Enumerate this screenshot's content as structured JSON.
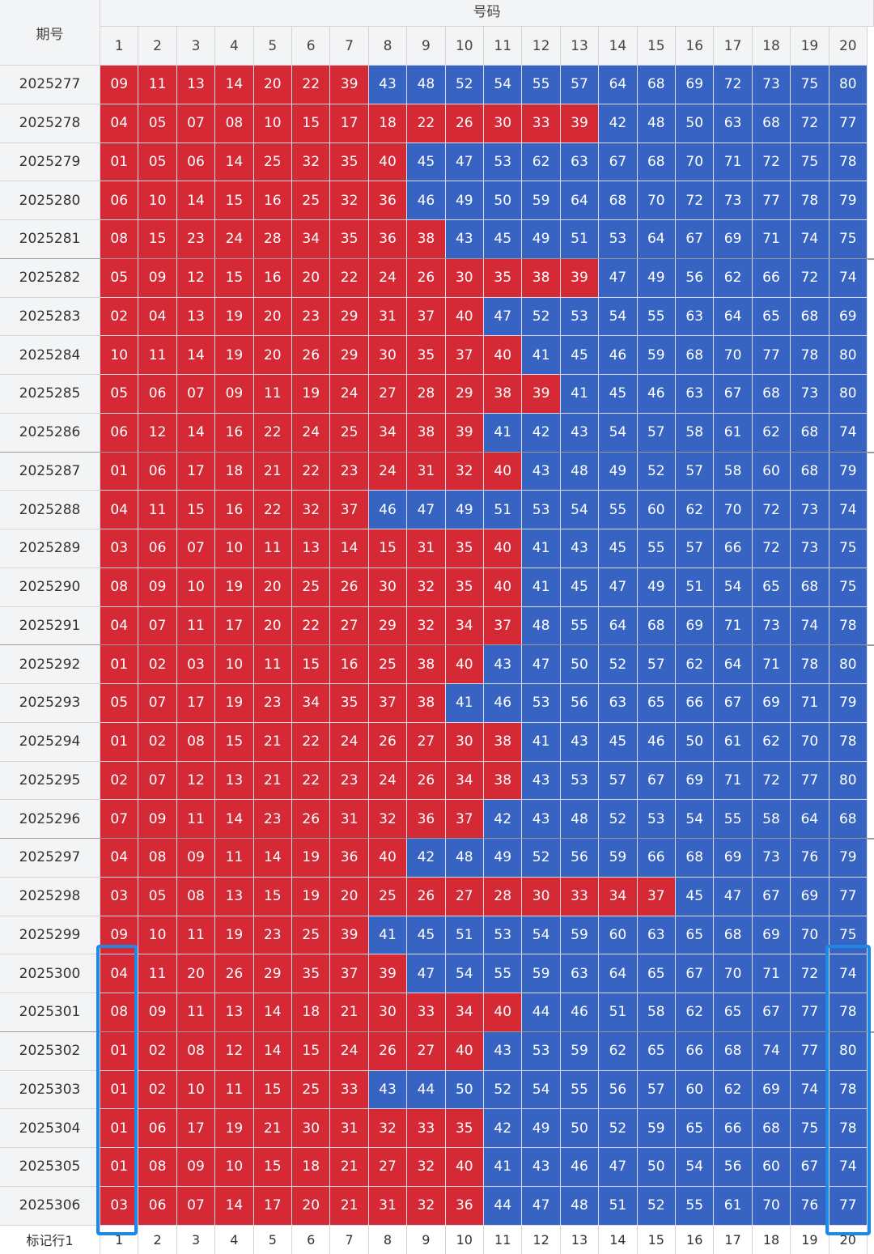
{
  "header": {
    "issue_label": "期号",
    "numbers_label": "号码",
    "columns": [
      "1",
      "2",
      "3",
      "4",
      "5",
      "6",
      "7",
      "8",
      "9",
      "10",
      "11",
      "12",
      "13",
      "14",
      "15",
      "16",
      "17",
      "18",
      "19",
      "20"
    ]
  },
  "footer": {
    "label": "标记行1",
    "columns": [
      "1",
      "2",
      "3",
      "4",
      "5",
      "6",
      "7",
      "8",
      "9",
      "10",
      "11",
      "12",
      "13",
      "14",
      "15",
      "16",
      "17",
      "18",
      "19",
      "20"
    ]
  },
  "colors": {
    "red": "#d52a36",
    "blue": "#3764c2",
    "highlight": "#1e88e5"
  },
  "highlighted_columns": [
    "1",
    "20"
  ],
  "highlighted_issues_from": "2025300",
  "rows": [
    {
      "issue": "2025277",
      "nums": [
        "09",
        "11",
        "13",
        "14",
        "20",
        "22",
        "39",
        "43",
        "48",
        "52",
        "54",
        "55",
        "57",
        "64",
        "68",
        "69",
        "72",
        "73",
        "75",
        "80"
      ]
    },
    {
      "issue": "2025278",
      "nums": [
        "04",
        "05",
        "07",
        "08",
        "10",
        "15",
        "17",
        "18",
        "22",
        "26",
        "30",
        "33",
        "39",
        "42",
        "48",
        "50",
        "63",
        "68",
        "72",
        "77"
      ]
    },
    {
      "issue": "2025279",
      "nums": [
        "01",
        "05",
        "06",
        "14",
        "25",
        "32",
        "35",
        "40",
        "45",
        "47",
        "53",
        "62",
        "63",
        "67",
        "68",
        "70",
        "71",
        "72",
        "75",
        "78"
      ]
    },
    {
      "issue": "2025280",
      "nums": [
        "06",
        "10",
        "14",
        "15",
        "16",
        "25",
        "32",
        "36",
        "46",
        "49",
        "50",
        "59",
        "64",
        "68",
        "70",
        "72",
        "73",
        "77",
        "78",
        "79"
      ]
    },
    {
      "issue": "2025281",
      "nums": [
        "08",
        "15",
        "23",
        "24",
        "28",
        "34",
        "35",
        "36",
        "38",
        "43",
        "45",
        "49",
        "51",
        "53",
        "64",
        "67",
        "69",
        "71",
        "74",
        "75"
      ]
    },
    {
      "issue": "2025282",
      "nums": [
        "05",
        "09",
        "12",
        "15",
        "16",
        "20",
        "22",
        "24",
        "26",
        "30",
        "35",
        "38",
        "39",
        "47",
        "49",
        "56",
        "62",
        "66",
        "72",
        "74"
      ]
    },
    {
      "issue": "2025283",
      "nums": [
        "02",
        "04",
        "13",
        "19",
        "20",
        "23",
        "29",
        "31",
        "37",
        "40",
        "47",
        "52",
        "53",
        "54",
        "55",
        "63",
        "64",
        "65",
        "68",
        "69"
      ]
    },
    {
      "issue": "2025284",
      "nums": [
        "10",
        "11",
        "14",
        "19",
        "20",
        "26",
        "29",
        "30",
        "35",
        "37",
        "40",
        "41",
        "45",
        "46",
        "59",
        "68",
        "70",
        "77",
        "78",
        "80"
      ]
    },
    {
      "issue": "2025285",
      "nums": [
        "05",
        "06",
        "07",
        "09",
        "11",
        "19",
        "24",
        "27",
        "28",
        "29",
        "38",
        "39",
        "41",
        "45",
        "46",
        "63",
        "67",
        "68",
        "73",
        "80"
      ]
    },
    {
      "issue": "2025286",
      "nums": [
        "06",
        "12",
        "14",
        "16",
        "22",
        "24",
        "25",
        "34",
        "38",
        "39",
        "41",
        "42",
        "43",
        "54",
        "57",
        "58",
        "61",
        "62",
        "68",
        "74"
      ]
    },
    {
      "issue": "2025287",
      "nums": [
        "01",
        "06",
        "17",
        "18",
        "21",
        "22",
        "23",
        "24",
        "31",
        "32",
        "40",
        "43",
        "48",
        "49",
        "52",
        "57",
        "58",
        "60",
        "68",
        "79"
      ]
    },
    {
      "issue": "2025288",
      "nums": [
        "04",
        "11",
        "15",
        "16",
        "22",
        "32",
        "37",
        "46",
        "47",
        "49",
        "51",
        "53",
        "54",
        "55",
        "60",
        "62",
        "70",
        "72",
        "73",
        "74"
      ]
    },
    {
      "issue": "2025289",
      "nums": [
        "03",
        "06",
        "07",
        "10",
        "11",
        "13",
        "14",
        "15",
        "31",
        "35",
        "40",
        "41",
        "43",
        "45",
        "55",
        "57",
        "66",
        "72",
        "73",
        "75"
      ]
    },
    {
      "issue": "2025290",
      "nums": [
        "08",
        "09",
        "10",
        "19",
        "20",
        "25",
        "26",
        "30",
        "32",
        "35",
        "40",
        "41",
        "45",
        "47",
        "49",
        "51",
        "54",
        "65",
        "68",
        "75"
      ]
    },
    {
      "issue": "2025291",
      "nums": [
        "04",
        "07",
        "11",
        "17",
        "20",
        "22",
        "27",
        "29",
        "32",
        "34",
        "37",
        "48",
        "55",
        "64",
        "68",
        "69",
        "71",
        "73",
        "74",
        "78"
      ]
    },
    {
      "issue": "2025292",
      "nums": [
        "01",
        "02",
        "03",
        "10",
        "11",
        "15",
        "16",
        "25",
        "38",
        "40",
        "43",
        "47",
        "50",
        "52",
        "57",
        "62",
        "64",
        "71",
        "78",
        "80"
      ]
    },
    {
      "issue": "2025293",
      "nums": [
        "05",
        "07",
        "17",
        "19",
        "23",
        "34",
        "35",
        "37",
        "38",
        "41",
        "46",
        "53",
        "56",
        "63",
        "65",
        "66",
        "67",
        "69",
        "71",
        "79"
      ]
    },
    {
      "issue": "2025294",
      "nums": [
        "01",
        "02",
        "08",
        "15",
        "21",
        "22",
        "24",
        "26",
        "27",
        "30",
        "38",
        "41",
        "43",
        "45",
        "46",
        "50",
        "61",
        "62",
        "70",
        "78"
      ]
    },
    {
      "issue": "2025295",
      "nums": [
        "02",
        "07",
        "12",
        "13",
        "21",
        "22",
        "23",
        "24",
        "26",
        "34",
        "38",
        "43",
        "53",
        "57",
        "67",
        "69",
        "71",
        "72",
        "77",
        "80"
      ]
    },
    {
      "issue": "2025296",
      "nums": [
        "07",
        "09",
        "11",
        "14",
        "23",
        "26",
        "31",
        "32",
        "36",
        "37",
        "42",
        "43",
        "48",
        "52",
        "53",
        "54",
        "55",
        "58",
        "64",
        "68"
      ]
    },
    {
      "issue": "2025297",
      "nums": [
        "04",
        "08",
        "09",
        "11",
        "14",
        "19",
        "36",
        "40",
        "42",
        "48",
        "49",
        "52",
        "56",
        "59",
        "66",
        "68",
        "69",
        "73",
        "76",
        "79"
      ]
    },
    {
      "issue": "2025298",
      "nums": [
        "03",
        "05",
        "08",
        "13",
        "15",
        "19",
        "20",
        "25",
        "26",
        "27",
        "28",
        "30",
        "33",
        "34",
        "37",
        "45",
        "47",
        "67",
        "69",
        "77"
      ]
    },
    {
      "issue": "2025299",
      "nums": [
        "09",
        "10",
        "11",
        "19",
        "23",
        "25",
        "39",
        "41",
        "45",
        "51",
        "53",
        "54",
        "59",
        "60",
        "63",
        "65",
        "68",
        "69",
        "70",
        "75"
      ]
    },
    {
      "issue": "2025300",
      "nums": [
        "04",
        "11",
        "20",
        "26",
        "29",
        "35",
        "37",
        "39",
        "47",
        "54",
        "55",
        "59",
        "63",
        "64",
        "65",
        "67",
        "70",
        "71",
        "72",
        "74"
      ]
    },
    {
      "issue": "2025301",
      "nums": [
        "08",
        "09",
        "11",
        "13",
        "14",
        "18",
        "21",
        "30",
        "33",
        "34",
        "40",
        "44",
        "46",
        "51",
        "58",
        "62",
        "65",
        "67",
        "77",
        "78"
      ]
    },
    {
      "issue": "2025302",
      "nums": [
        "01",
        "02",
        "08",
        "12",
        "14",
        "15",
        "24",
        "26",
        "27",
        "40",
        "43",
        "53",
        "59",
        "62",
        "65",
        "66",
        "68",
        "74",
        "77",
        "80"
      ]
    },
    {
      "issue": "2025303",
      "nums": [
        "01",
        "02",
        "10",
        "11",
        "15",
        "25",
        "33",
        "43",
        "44",
        "50",
        "52",
        "54",
        "55",
        "56",
        "57",
        "60",
        "62",
        "69",
        "74",
        "78"
      ]
    },
    {
      "issue": "2025304",
      "nums": [
        "01",
        "06",
        "17",
        "19",
        "21",
        "30",
        "31",
        "32",
        "33",
        "35",
        "42",
        "49",
        "50",
        "52",
        "59",
        "65",
        "66",
        "68",
        "75",
        "78"
      ]
    },
    {
      "issue": "2025305",
      "nums": [
        "01",
        "08",
        "09",
        "10",
        "15",
        "18",
        "21",
        "27",
        "32",
        "40",
        "41",
        "43",
        "46",
        "47",
        "50",
        "54",
        "56",
        "60",
        "67",
        "74"
      ]
    },
    {
      "issue": "2025306",
      "nums": [
        "03",
        "06",
        "07",
        "14",
        "17",
        "20",
        "21",
        "31",
        "32",
        "36",
        "44",
        "47",
        "48",
        "51",
        "52",
        "55",
        "61",
        "70",
        "76",
        "77"
      ]
    }
  ]
}
